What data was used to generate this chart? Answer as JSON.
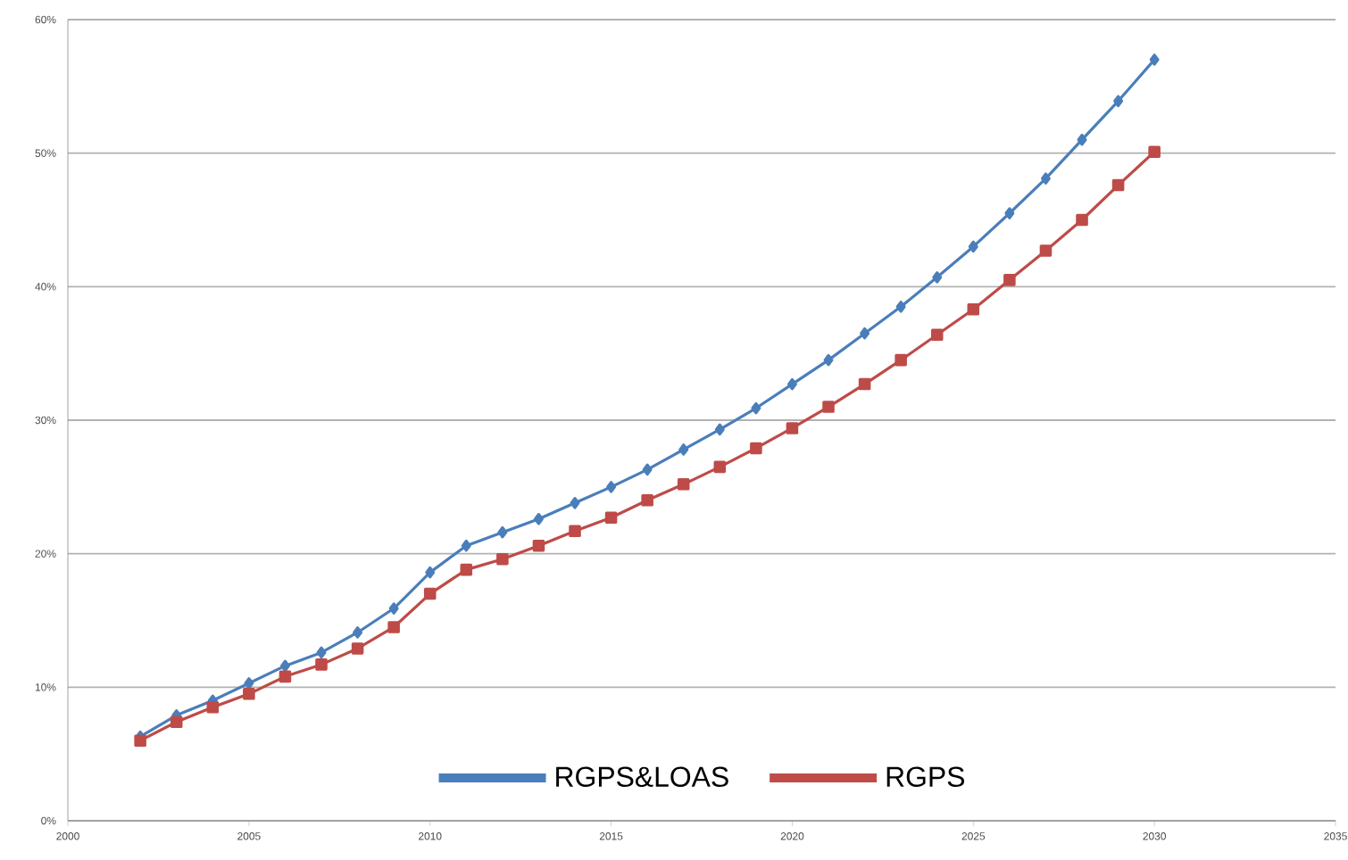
{
  "chart_data": {
    "type": "line",
    "x": [
      2002,
      2003,
      2004,
      2005,
      2006,
      2007,
      2008,
      2009,
      2010,
      2011,
      2012,
      2013,
      2014,
      2015,
      2016,
      2017,
      2018,
      2019,
      2020,
      2021,
      2022,
      2023,
      2024,
      2025,
      2026,
      2027,
      2028,
      2029,
      2030
    ],
    "series": [
      {
        "name": "RGPS&LOAS",
        "color": "#4a7ebb",
        "marker": "diamond",
        "values": [
          6.3,
          7.9,
          9.0,
          10.3,
          11.6,
          12.6,
          14.1,
          15.9,
          18.6,
          20.6,
          21.6,
          22.6,
          23.8,
          25.0,
          26.3,
          27.8,
          29.3,
          30.9,
          32.7,
          34.5,
          36.5,
          38.5,
          40.7,
          43.0,
          45.5,
          48.1,
          51.0,
          53.9,
          57.0
        ]
      },
      {
        "name": "RGPS",
        "color": "#be4b48",
        "marker": "square",
        "values": [
          6.0,
          7.4,
          8.5,
          9.5,
          10.8,
          11.7,
          12.9,
          14.5,
          17.0,
          18.8,
          19.6,
          20.6,
          21.7,
          22.7,
          24.0,
          25.2,
          26.5,
          27.9,
          29.4,
          31.0,
          32.7,
          34.5,
          36.4,
          38.3,
          40.5,
          42.7,
          45.0,
          47.6,
          50.1
        ]
      }
    ],
    "xlim": [
      2000,
      2035
    ],
    "xticks": [
      2000,
      2005,
      2010,
      2015,
      2020,
      2025,
      2030,
      2035
    ],
    "ylim": [
      0,
      60
    ],
    "yticks": [
      {
        "value": 0,
        "label": "0%"
      },
      {
        "value": 10,
        "label": "10%"
      },
      {
        "value": 20,
        "label": "20%"
      },
      {
        "value": 30,
        "label": "30%"
      },
      {
        "value": 40,
        "label": "40%"
      },
      {
        "value": 50,
        "label": "50%"
      },
      {
        "value": 60,
        "label": "60%"
      }
    ],
    "grid": "y",
    "legend": "bottom",
    "line_style": "solid"
  }
}
